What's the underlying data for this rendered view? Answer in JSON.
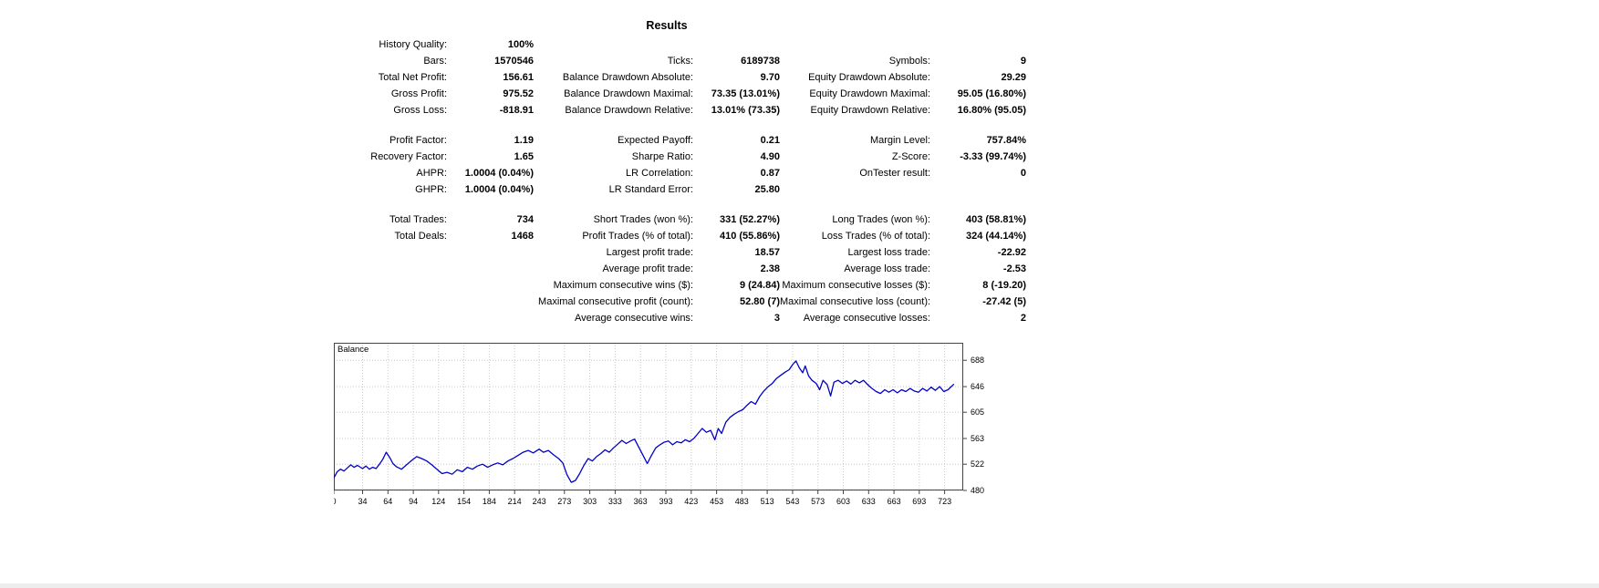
{
  "title": "Results",
  "stats": {
    "rows": [
      [
        "History Quality:",
        "100%",
        "",
        "",
        "",
        ""
      ],
      [
        "Bars:",
        "1570546",
        "Ticks:",
        "6189738",
        "Symbols:",
        "9"
      ],
      [
        "Total Net Profit:",
        "156.61",
        "Balance Drawdown Absolute:",
        "9.70",
        "Equity Drawdown Absolute:",
        "29.29"
      ],
      [
        "Gross Profit:",
        "975.52",
        "Balance Drawdown Maximal:",
        "73.35 (13.01%)",
        "Equity Drawdown Maximal:",
        "95.05 (16.80%)"
      ],
      [
        "Gross Loss:",
        "-818.91",
        "Balance Drawdown Relative:",
        "13.01% (73.35)",
        "Equity Drawdown Relative:",
        "16.80% (95.05)"
      ],
      [],
      [
        "Profit Factor:",
        "1.19",
        "Expected Payoff:",
        "0.21",
        "Margin Level:",
        "757.84%"
      ],
      [
        "Recovery Factor:",
        "1.65",
        "Sharpe Ratio:",
        "4.90",
        "Z-Score:",
        "-3.33 (99.74%)"
      ],
      [
        "AHPR:",
        "1.0004 (0.04%)",
        "LR Correlation:",
        "0.87",
        "OnTester result:",
        "0"
      ],
      [
        "GHPR:",
        "1.0004 (0.04%)",
        "LR Standard Error:",
        "25.80",
        "",
        ""
      ],
      [],
      [
        "Total Trades:",
        "734",
        "Short Trades (won %):",
        "331 (52.27%)",
        "Long Trades (won %):",
        "403 (58.81%)"
      ],
      [
        "Total Deals:",
        "1468",
        "Profit Trades (% of total):",
        "410 (55.86%)",
        "Loss Trades (% of total):",
        "324 (44.14%)"
      ],
      [
        "",
        "",
        "Largest profit trade:",
        "18.57",
        "Largest loss trade:",
        "-22.92"
      ],
      [
        "",
        "",
        "Average profit trade:",
        "2.38",
        "Average loss trade:",
        "-2.53"
      ],
      [
        "",
        "",
        "Maximum consecutive wins ($):",
        "9 (24.84)",
        "Maximum consecutive losses ($):",
        "8 (-19.20)"
      ],
      [
        "",
        "",
        "Maximal consecutive profit (count):",
        "52.80 (7)",
        "Maximal consecutive loss (count):",
        "-27.42 (5)"
      ],
      [
        "",
        "",
        "Average consecutive wins:",
        "3",
        "Average consecutive losses:",
        "2"
      ]
    ]
  },
  "chart_data": {
    "type": "line",
    "title": "Balance",
    "line_color": "#0000c8",
    "xlim": [
      0,
      745
    ],
    "ylim": [
      480,
      716
    ],
    "yticks": [
      688,
      646,
      605,
      563,
      522,
      480
    ],
    "xticks": [
      0,
      34,
      64,
      94,
      124,
      154,
      184,
      214,
      243,
      273,
      303,
      333,
      363,
      393,
      423,
      453,
      483,
      513,
      543,
      573,
      603,
      633,
      663,
      693,
      723
    ],
    "series": [
      {
        "name": "Balance",
        "points": [
          [
            0,
            500
          ],
          [
            4,
            510
          ],
          [
            8,
            514
          ],
          [
            12,
            511
          ],
          [
            16,
            516
          ],
          [
            20,
            521
          ],
          [
            24,
            517
          ],
          [
            28,
            520
          ],
          [
            34,
            515
          ],
          [
            38,
            519
          ],
          [
            42,
            514
          ],
          [
            46,
            517
          ],
          [
            50,
            515
          ],
          [
            54,
            522
          ],
          [
            58,
            530
          ],
          [
            62,
            541
          ],
          [
            66,
            533
          ],
          [
            70,
            523
          ],
          [
            74,
            518
          ],
          [
            80,
            514
          ],
          [
            86,
            521
          ],
          [
            92,
            528
          ],
          [
            98,
            534
          ],
          [
            104,
            531
          ],
          [
            110,
            527
          ],
          [
            116,
            521
          ],
          [
            122,
            514
          ],
          [
            128,
            507
          ],
          [
            134,
            509
          ],
          [
            140,
            506
          ],
          [
            146,
            513
          ],
          [
            152,
            510
          ],
          [
            158,
            517
          ],
          [
            164,
            514
          ],
          [
            170,
            519
          ],
          [
            176,
            522
          ],
          [
            182,
            517
          ],
          [
            188,
            521
          ],
          [
            194,
            524
          ],
          [
            200,
            521
          ],
          [
            206,
            527
          ],
          [
            212,
            531
          ],
          [
            218,
            536
          ],
          [
            224,
            541
          ],
          [
            230,
            544
          ],
          [
            236,
            540
          ],
          [
            243,
            546
          ],
          [
            248,
            541
          ],
          [
            254,
            544
          ],
          [
            260,
            537
          ],
          [
            266,
            531
          ],
          [
            271,
            524
          ],
          [
            276,
            505
          ],
          [
            281,
            493
          ],
          [
            286,
            496
          ],
          [
            291,
            507
          ],
          [
            296,
            520
          ],
          [
            301,
            531
          ],
          [
            306,
            527
          ],
          [
            311,
            534
          ],
          [
            316,
            539
          ],
          [
            321,
            545
          ],
          [
            326,
            541
          ],
          [
            331,
            548
          ],
          [
            336,
            554
          ],
          [
            341,
            560
          ],
          [
            346,
            555
          ],
          [
            351,
            559
          ],
          [
            356,
            562
          ],
          [
            361,
            549
          ],
          [
            366,
            536
          ],
          [
            371,
            523
          ],
          [
            376,
            536
          ],
          [
            381,
            548
          ],
          [
            386,
            553
          ],
          [
            391,
            557
          ],
          [
            396,
            559
          ],
          [
            401,
            553
          ],
          [
            406,
            558
          ],
          [
            411,
            556
          ],
          [
            416,
            561
          ],
          [
            421,
            558
          ],
          [
            426,
            563
          ],
          [
            431,
            571
          ],
          [
            436,
            579
          ],
          [
            441,
            573
          ],
          [
            446,
            576
          ],
          [
            451,
            561
          ],
          [
            455,
            579
          ],
          [
            459,
            571
          ],
          [
            464,
            589
          ],
          [
            469,
            597
          ],
          [
            474,
            602
          ],
          [
            479,
            606
          ],
          [
            484,
            609
          ],
          [
            489,
            616
          ],
          [
            494,
            622
          ],
          [
            499,
            618
          ],
          [
            504,
            630
          ],
          [
            509,
            639
          ],
          [
            514,
            646
          ],
          [
            519,
            651
          ],
          [
            524,
            659
          ],
          [
            529,
            664
          ],
          [
            534,
            669
          ],
          [
            539,
            673
          ],
          [
            543,
            681
          ],
          [
            547,
            687
          ],
          [
            551,
            676
          ],
          [
            555,
            668
          ],
          [
            558,
            679
          ],
          [
            562,
            663
          ],
          [
            566,
            656
          ],
          [
            571,
            651
          ],
          [
            575,
            641
          ],
          [
            579,
            656
          ],
          [
            584,
            649
          ],
          [
            588,
            631
          ],
          [
            592,
            653
          ],
          [
            597,
            656
          ],
          [
            602,
            651
          ],
          [
            607,
            655
          ],
          [
            612,
            650
          ],
          [
            617,
            656
          ],
          [
            622,
            652
          ],
          [
            627,
            656
          ],
          [
            632,
            649
          ],
          [
            637,
            643
          ],
          [
            642,
            638
          ],
          [
            647,
            635
          ],
          [
            652,
            641
          ],
          [
            657,
            637
          ],
          [
            662,
            641
          ],
          [
            667,
            636
          ],
          [
            672,
            641
          ],
          [
            677,
            638
          ],
          [
            682,
            643
          ],
          [
            687,
            639
          ],
          [
            692,
            637
          ],
          [
            697,
            643
          ],
          [
            702,
            639
          ],
          [
            707,
            645
          ],
          [
            712,
            640
          ],
          [
            717,
            646
          ],
          [
            722,
            638
          ],
          [
            727,
            641
          ],
          [
            734,
            650
          ]
        ]
      }
    ]
  }
}
